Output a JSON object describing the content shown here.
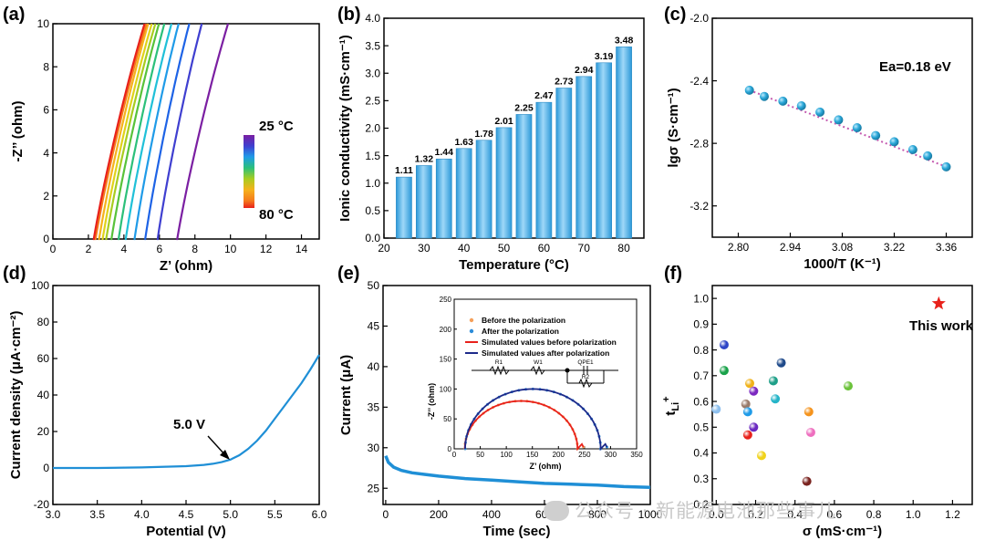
{
  "panels": {
    "a": {
      "letter": "(a)",
      "xlabel": "Z’ (ohm)",
      "ylabel": "-Z’’ (ohm)",
      "colorbar_top": "25 °C",
      "colorbar_bottom": "80 °C",
      "xticks": [
        "0",
        "2",
        "4",
        "6",
        "8",
        "10",
        "12",
        "14"
      ],
      "yticks": [
        "0",
        "2",
        "4",
        "6",
        "8",
        "10"
      ]
    },
    "b": {
      "letter": "(b)",
      "xlabel": "Temperature (°C)",
      "ylabel": "Ionic conductivity (mS·cm⁻¹)",
      "xticks": [
        "20",
        "30",
        "40",
        "50",
        "60",
        "70",
        "80"
      ],
      "yticks": [
        "0.0",
        "0.5",
        "1.0",
        "1.5",
        "2.0",
        "2.5",
        "3.0",
        "3.5",
        "4.0"
      ]
    },
    "c": {
      "letter": "(c)",
      "xlabel": "1000/T (K⁻¹)",
      "ylabel": "lgσ (S·cm⁻¹)",
      "annotation": "Ea=0.18 eV",
      "xticks": [
        "2.80",
        "2.94",
        "3.08",
        "3.22",
        "3.36"
      ],
      "yticks": [
        "-3.2",
        "-2.8",
        "-2.4",
        "-2.0"
      ]
    },
    "d": {
      "letter": "(d)",
      "xlabel": "Potential (V)",
      "ylabel": "Current density (μA·cm⁻²)",
      "annotation": "5.0 V",
      "xticks": [
        "3.0",
        "3.5",
        "4.0",
        "4.5",
        "5.0",
        "5.5",
        "6.0"
      ],
      "yticks": [
        "-20",
        "0",
        "20",
        "40",
        "60",
        "80",
        "100"
      ]
    },
    "e": {
      "letter": "(e)",
      "xlabel": "Time (sec)",
      "ylabel": "Current (μA)",
      "xticks": [
        "0",
        "200",
        "400",
        "600",
        "800",
        "1000"
      ],
      "yticks": [
        "25",
        "30",
        "35",
        "40",
        "45",
        "50"
      ],
      "inset": {
        "xlabel": "Z’ (ohm)",
        "ylabel": "-Z’’ (ohm)",
        "xticks": [
          "0",
          "50",
          "100",
          "150",
          "200",
          "250",
          "300",
          "350"
        ],
        "yticks": [
          "0",
          "50",
          "100",
          "150",
          "200",
          "250"
        ],
        "legend": [
          "Before the polarization",
          "After the polarization",
          "Simulated values before polarization",
          "Simulated values after polarization"
        ],
        "circuit": [
          "R1",
          "W1",
          "QPE1",
          "R2"
        ]
      }
    },
    "f": {
      "letter": "(f)",
      "xlabel": "σ (mS·cm⁻¹)",
      "ylabel": "tLi+",
      "annotation": "This work",
      "xticks": [
        "0.0",
        "0.2",
        "0.4",
        "0.6",
        "0.8",
        "1.0",
        "1.2"
      ],
      "yticks": [
        "0.2",
        "0.3",
        "0.4",
        "0.5",
        "0.6",
        "0.7",
        "0.8",
        "0.9",
        "1.0"
      ]
    }
  },
  "watermark": "公众号 · 新能源电池那些事儿",
  "colors": {
    "bar": "#5ab4e6",
    "marker": "#2aa7d8",
    "curve": "#1f8fd6",
    "fitline": "#c45ab0",
    "star": "#e8211b"
  },
  "chart_data": [
    {
      "id": "a",
      "type": "line",
      "xlabel": "Z’ (ohm)",
      "ylabel": "-Z’’ (ohm)",
      "xlim": [
        0,
        15
      ],
      "ylim": [
        0,
        10
      ],
      "series": [
        {
          "temp": 25,
          "x_start": 7.0,
          "x_end": 10.0,
          "color": "#7b1fa2"
        },
        {
          "temp": 30,
          "x_start": 5.9,
          "x_end": 8.5,
          "color": "#3f3fd0"
        },
        {
          "temp": 35,
          "x_start": 5.2,
          "x_end": 7.8,
          "color": "#1e63e6"
        },
        {
          "temp": 40,
          "x_start": 4.6,
          "x_end": 7.2,
          "color": "#1f9be8"
        },
        {
          "temp": 45,
          "x_start": 4.1,
          "x_end": 6.8,
          "color": "#20c0d8"
        },
        {
          "temp": 50,
          "x_start": 3.7,
          "x_end": 6.4,
          "color": "#2cc07a"
        },
        {
          "temp": 55,
          "x_start": 3.3,
          "x_end": 6.1,
          "color": "#58c23a"
        },
        {
          "temp": 60,
          "x_start": 3.0,
          "x_end": 5.9,
          "color": "#a8cc20"
        },
        {
          "temp": 65,
          "x_start": 2.8,
          "x_end": 5.7,
          "color": "#e0d21a"
        },
        {
          "temp": 70,
          "x_start": 2.6,
          "x_end": 5.5,
          "color": "#f5b21c"
        },
        {
          "temp": 75,
          "x_start": 2.4,
          "x_end": 5.4,
          "color": "#f57a1c"
        },
        {
          "temp": 80,
          "x_start": 2.3,
          "x_end": 5.3,
          "color": "#e8211b"
        }
      ]
    },
    {
      "id": "b",
      "type": "bar",
      "xlabel": "Temperature (°C)",
      "ylabel": "Ionic conductivity (mS·cm⁻¹)",
      "xlim": [
        20,
        85
      ],
      "ylim": [
        0,
        4
      ],
      "categories": [
        25,
        30,
        35,
        40,
        45,
        50,
        55,
        60,
        65,
        70,
        75,
        80
      ],
      "values": [
        1.11,
        1.32,
        1.44,
        1.63,
        1.78,
        2.01,
        2.25,
        2.47,
        2.73,
        2.94,
        3.19,
        3.48
      ],
      "labels": [
        "1.11",
        "1.32",
        "1.44",
        "1.63",
        "1.78",
        "2.01",
        "2.25",
        "2.47",
        "2.73",
        "2.94",
        "3.19",
        "3.48"
      ]
    },
    {
      "id": "c",
      "type": "scatter",
      "xlabel": "1000/T (K⁻¹)",
      "ylabel": "lgσ (S·cm⁻¹)",
      "xlim": [
        2.73,
        3.43
      ],
      "ylim": [
        -3.4,
        -2.0
      ],
      "x": [
        2.83,
        2.87,
        2.92,
        2.97,
        3.02,
        3.07,
        3.12,
        3.17,
        3.22,
        3.27,
        3.31,
        3.36
      ],
      "y": [
        -2.46,
        -2.5,
        -2.53,
        -2.56,
        -2.6,
        -2.65,
        -2.7,
        -2.75,
        -2.79,
        -2.84,
        -2.88,
        -2.95
      ],
      "fit": {
        "x": [
          2.83,
          3.36
        ],
        "y": [
          -2.46,
          -2.95
        ]
      }
    },
    {
      "id": "d",
      "type": "line",
      "xlabel": "Potential (V)",
      "ylabel": "Current density (μA·cm⁻²)",
      "xlim": [
        3.0,
        6.0
      ],
      "ylim": [
        -20,
        100
      ],
      "x": [
        3.0,
        3.5,
        4.0,
        4.5,
        4.7,
        4.8,
        4.9,
        5.0,
        5.1,
        5.2,
        5.3,
        5.4,
        5.5,
        5.6,
        5.7,
        5.8,
        5.9,
        6.0
      ],
      "y": [
        0,
        0,
        0.3,
        1.0,
        1.7,
        2.3,
        3.2,
        4.6,
        7.0,
        10.5,
        15,
        20.5,
        27,
        33.5,
        40,
        46.5,
        54,
        62
      ]
    },
    {
      "id": "e",
      "type": "line",
      "xlabel": "Time (sec)",
      "ylabel": "Current (μA)",
      "xlim": [
        -10,
        1000
      ],
      "ylim": [
        23,
        50
      ],
      "x": [
        0,
        10,
        30,
        60,
        100,
        150,
        200,
        300,
        400,
        500,
        600,
        700,
        800,
        900,
        1000
      ],
      "y": [
        29.0,
        28.2,
        27.6,
        27.2,
        26.9,
        26.7,
        26.5,
        26.2,
        26.0,
        25.8,
        25.6,
        25.5,
        25.4,
        25.2,
        25.1
      ]
    },
    {
      "id": "e-inset",
      "type": "scatter",
      "xlabel": "Z’ (ohm)",
      "ylabel": "-Z’’ (ohm)",
      "xlim": [
        0,
        350
      ],
      "ylim": [
        0,
        250
      ],
      "series": [
        {
          "name": "Before the polarization",
          "arc_start": 17,
          "arc_end": 240,
          "peak": 80,
          "color": "#f5a05a"
        },
        {
          "name": "After the polarization",
          "arc_start": 17,
          "arc_end": 285,
          "peak": 100,
          "color": "#2b8cd9"
        },
        {
          "name": "Simulated values before polarization",
          "arc_start": 17,
          "arc_end": 240,
          "peak": 80,
          "color": "#e8211b"
        },
        {
          "name": "Simulated values after polarization",
          "arc_start": 17,
          "arc_end": 285,
          "peak": 100,
          "color": "#1d2a8a"
        }
      ]
    },
    {
      "id": "f",
      "type": "scatter",
      "xlabel": "σ (mS·cm⁻¹)",
      "ylabel": "tLi+",
      "xlim": [
        -0.02,
        1.3
      ],
      "ylim": [
        0.2,
        1.05
      ],
      "points": [
        {
          "x": 0.04,
          "y": 0.82,
          "color": "#2e45c7"
        },
        {
          "x": 0.04,
          "y": 0.72,
          "color": "#1aa24a"
        },
        {
          "x": 0.0,
          "y": 0.57,
          "color": "#8ec0ee"
        },
        {
          "x": 0.17,
          "y": 0.67,
          "color": "#f0b21a"
        },
        {
          "x": 0.19,
          "y": 0.64,
          "color": "#7b28c0"
        },
        {
          "x": 0.15,
          "y": 0.59,
          "color": "#9a7b6b"
        },
        {
          "x": 0.16,
          "y": 0.56,
          "color": "#1f9be8"
        },
        {
          "x": 0.19,
          "y": 0.5,
          "color": "#6a28c0"
        },
        {
          "x": 0.16,
          "y": 0.47,
          "color": "#e8211b"
        },
        {
          "x": 0.23,
          "y": 0.39,
          "color": "#f0d21a"
        },
        {
          "x": 0.29,
          "y": 0.68,
          "color": "#1e9f88"
        },
        {
          "x": 0.33,
          "y": 0.75,
          "color": "#1f4a8a"
        },
        {
          "x": 0.3,
          "y": 0.61,
          "color": "#25b4c8"
        },
        {
          "x": 0.47,
          "y": 0.56,
          "color": "#f5931c"
        },
        {
          "x": 0.48,
          "y": 0.48,
          "color": "#ee6fbf"
        },
        {
          "x": 0.46,
          "y": 0.29,
          "color": "#7a2420"
        },
        {
          "x": 0.67,
          "y": 0.66,
          "color": "#6bc23a"
        }
      ],
      "highlight": {
        "x": 1.13,
        "y": 0.98,
        "label": "This work"
      }
    }
  ]
}
